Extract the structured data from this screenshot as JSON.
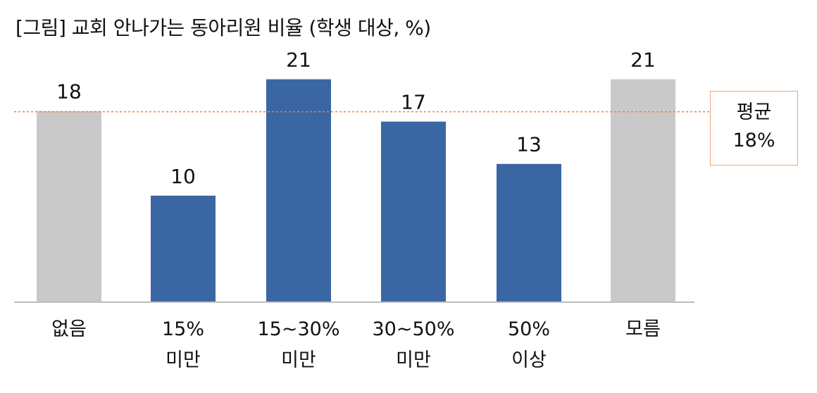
{
  "title": "[그림] 교회 안나가는 동아리원 비율 (학생 대상, %)",
  "average": {
    "label": "평균",
    "value_text": "18%",
    "value": 18,
    "color": "#f07f3c"
  },
  "chart_data": {
    "type": "bar",
    "title": "[그림] 교회 안나가는 동아리원 비율 (학생 대상, %)",
    "categories": [
      "없음",
      "15% 미만",
      "15~30% 미만",
      "30~50% 미만",
      "50% 이상",
      "모름"
    ],
    "category_lines": [
      [
        "없음"
      ],
      [
        "15%",
        "미만"
      ],
      [
        "15~30%",
        "미만"
      ],
      [
        "30~50%",
        "미만"
      ],
      [
        "50%",
        "이상"
      ],
      [
        "모름"
      ]
    ],
    "values": [
      18,
      10,
      21,
      17,
      13,
      21
    ],
    "value_labels": [
      "18",
      "10",
      "21",
      "17",
      "13",
      "21"
    ],
    "bar_colors": [
      "#c9c9c9",
      "#3a66a3",
      "#3a66a3",
      "#3a66a3",
      "#3a66a3",
      "#c9c9c9"
    ],
    "reference_line": {
      "value": 18,
      "label": "평균 18%",
      "style": "dotted",
      "color": "#f07f3c"
    },
    "ylim": [
      0,
      24.5
    ],
    "grid": false,
    "legend": "none",
    "xlabel": "",
    "ylabel": ""
  }
}
